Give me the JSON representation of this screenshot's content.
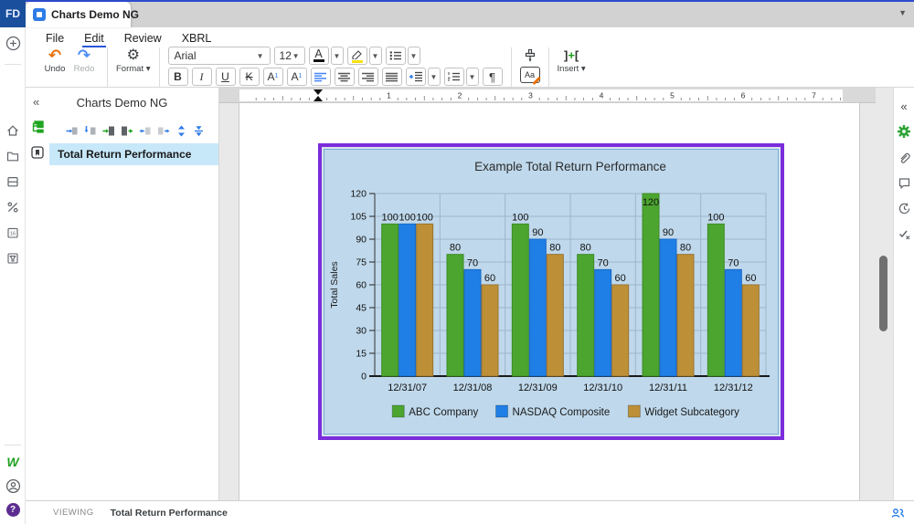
{
  "window": {
    "logo_text": "FD",
    "tab": {
      "title": "Charts Demo NG"
    }
  },
  "menubar": {
    "items": [
      "File",
      "Edit",
      "Review",
      "XBRL"
    ],
    "active": "Edit"
  },
  "toolbar": {
    "undo_label": "Undo",
    "redo_label": "Redo",
    "format_label": "Format",
    "font_family_value": "Arial",
    "font_size_value": "12",
    "bold": "B",
    "italic": "I",
    "underline": "U",
    "strikethrough": "K",
    "superscript_letter": "A",
    "subscript_letter": "A",
    "sup_digit": "1",
    "sub_digit": "1",
    "font_color_letter": "A",
    "pilcrow": "¶",
    "insert_label": "Insert",
    "insert_icon_left": "]",
    "insert_icon_plus": "+",
    "insert_icon_right": "["
  },
  "outline_panel": {
    "title": "Charts Demo NG",
    "items": [
      {
        "label": "Total Return Performance",
        "selected": true
      }
    ]
  },
  "ruler": {
    "numbers": [
      "1",
      "2",
      "3",
      "4",
      "5",
      "6",
      "7"
    ]
  },
  "status_bar": {
    "mode": "VIEWING",
    "section": "Total Return Performance"
  },
  "icons": {
    "left_rail": [
      "create",
      "home",
      "files",
      "boards",
      "percent",
      "calendar-16",
      "filter"
    ],
    "left_rail_bottom": [
      "workiva-w",
      "account",
      "help"
    ],
    "right_rail": [
      "collapse",
      "settings",
      "attachments",
      "comments",
      "history",
      "approvals"
    ],
    "outline_toolbar": [
      "insert-section-above",
      "insert-section-below",
      "insert-child-section",
      "promote-section",
      "outdent-section",
      "indent-section",
      "expand-all",
      "collapse-all"
    ],
    "bottom_right": [
      "presence"
    ]
  },
  "colors": {
    "brand_blue": "#1A4F9D",
    "accent_blue": "#2E7CE8",
    "selection_purple": "#7B2CDB",
    "highlight_row": "#C7E8F9",
    "chart_background": "#BFD8EB"
  },
  "chart_data": {
    "type": "bar",
    "title": "Example Total Return Performance",
    "xlabel": "",
    "ylabel": "Total Sales",
    "categories": [
      "12/31/07",
      "12/31/08",
      "12/31/09",
      "12/31/10",
      "12/31/11",
      "12/31/12"
    ],
    "series": [
      {
        "name": "ABC Company",
        "color": "#4BA52F",
        "border": "#3F8C27",
        "values": [
          100,
          80,
          100,
          80,
          120,
          100
        ]
      },
      {
        "name": "NASDAQ Composite",
        "color": "#1F7FE6",
        "border": "#1A69C4",
        "values": [
          100,
          70,
          90,
          70,
          90,
          70
        ]
      },
      {
        "name": "Widget Subcategory",
        "color": "#BD9038",
        "border": "#9A7430",
        "values": [
          100,
          60,
          80,
          60,
          80,
          60
        ]
      }
    ],
    "ylim": [
      0,
      120
    ],
    "ytick_step": 15,
    "grid": true,
    "data_labels": true,
    "legend_position": "bottom"
  }
}
